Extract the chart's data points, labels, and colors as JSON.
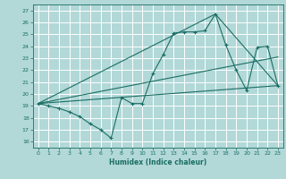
{
  "xlabel": "Humidex (Indice chaleur)",
  "bg_color": "#b2d8d8",
  "grid_color": "#ffffff",
  "line_color": "#1a6e64",
  "xlim": [
    -0.5,
    23.5
  ],
  "ylim": [
    15.5,
    27.5
  ],
  "xticks": [
    0,
    1,
    2,
    3,
    4,
    5,
    6,
    7,
    8,
    9,
    10,
    11,
    12,
    13,
    14,
    15,
    16,
    17,
    18,
    19,
    20,
    21,
    22,
    23
  ],
  "yticks": [
    16,
    17,
    18,
    19,
    20,
    21,
    22,
    23,
    24,
    25,
    26,
    27
  ],
  "line1_x": [
    0,
    1,
    2,
    3,
    4,
    5,
    6,
    7,
    8,
    9,
    10,
    11,
    12,
    13,
    14,
    15,
    16,
    17,
    18,
    19,
    20,
    21,
    22,
    23
  ],
  "line1_y": [
    19.2,
    19.0,
    18.8,
    18.5,
    18.1,
    17.5,
    17.0,
    16.3,
    19.7,
    19.2,
    19.2,
    21.7,
    23.3,
    25.1,
    25.2,
    25.2,
    25.3,
    26.7,
    24.1,
    22.0,
    20.3,
    23.9,
    24.0,
    20.7
  ],
  "line2_x": [
    0,
    23
  ],
  "line2_y": [
    19.2,
    20.7
  ],
  "line3_x": [
    0,
    17,
    23
  ],
  "line3_y": [
    19.2,
    26.7,
    20.7
  ],
  "line4_x": [
    0,
    23
  ],
  "line4_y": [
    19.2,
    23.1
  ]
}
